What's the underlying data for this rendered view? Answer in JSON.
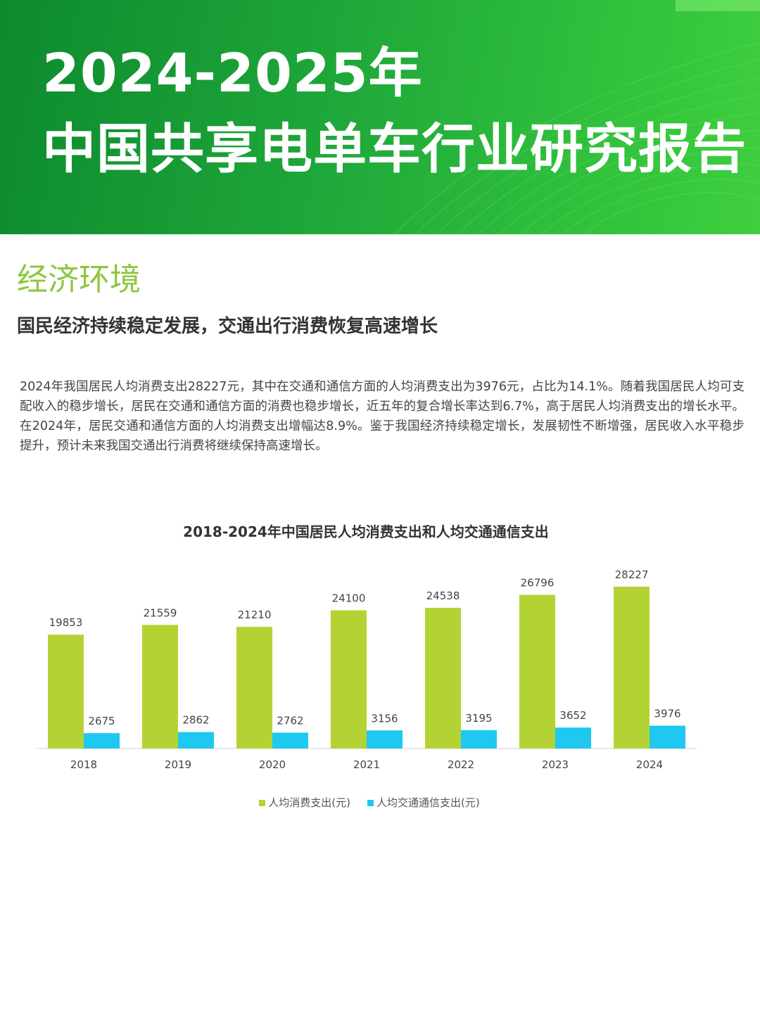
{
  "banner": {
    "line1": "2024-2025年",
    "line2": "中国共享电单车行业研究报告"
  },
  "section": {
    "title": "经济环境",
    "subheading": "国民经济持续稳定发展，交通出行消费恢复高速增长",
    "body": "2024年我国居民人均消费支出28227元，其中在交通和通信方面的人均消费支出为3976元，占比为14.1%。随着我国居民人均可支配收入的稳步增长，居民在交通和通信方面的消费也稳步增长，近五年的复合增长率达到6.7%，高于居民人均消费支出的增长水平。在2024年，居民交通和通信方面的人均消费支出增幅达8.9%。鉴于我国经济持续稳定增长，发展韧性不断增强，居民收入水平稳步提升，预计未来我国交通出行消费将继续保持高速增长。"
  },
  "colors": {
    "banner_green": "#1fa83a",
    "title_green": "#8cc63f",
    "series_green": "#b3d335",
    "series_blue": "#1ec8f0"
  },
  "chart_data": {
    "type": "bar",
    "title": "2018-2024年中国居民人均消费支出和人均交通通信支出",
    "categories": [
      "2018",
      "2019",
      "2020",
      "2021",
      "2022",
      "2023",
      "2024"
    ],
    "series": [
      {
        "name": "人均消费支出(元)",
        "values": [
          19853,
          21559,
          21210,
          24100,
          24538,
          26796,
          28227
        ],
        "color": "#b3d335"
      },
      {
        "name": "人均交通通信支出(元)",
        "values": [
          2675,
          2862,
          2762,
          3156,
          3195,
          3652,
          3976
        ],
        "color": "#1ec8f0"
      }
    ],
    "ylim": [
      0,
      30000
    ],
    "grid": false,
    "legend": "bottom"
  }
}
